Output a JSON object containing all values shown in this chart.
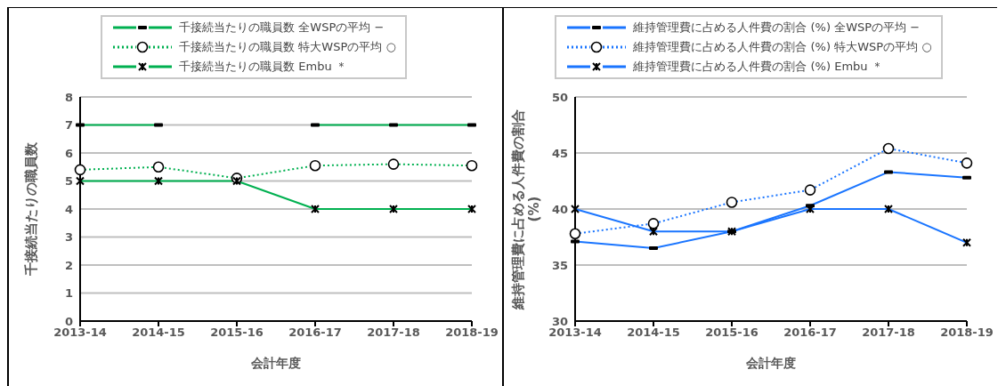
{
  "chart_data": [
    {
      "type": "line",
      "categories": [
        "2013-14",
        "2014-15",
        "2015-16",
        "2016-17",
        "2017-18",
        "2018-19"
      ],
      "xlabel": "会計年度",
      "ylabel": "千接続当たりの職員数",
      "ylim": [
        0,
        8
      ],
      "yticks": [
        0,
        1,
        2,
        3,
        4,
        5,
        6,
        7,
        8
      ],
      "grid": "y",
      "legend": "top",
      "series": [
        {
          "name": "千接続当たりの職員数 全WSPの平均 −",
          "color": "#00b050",
          "marker": "square",
          "line_style": "solid",
          "values": [
            7,
            7,
            null,
            7,
            7,
            7
          ]
        },
        {
          "name": "千接続当たりの職員数 特大WSPの平均 ○",
          "color": "#00b050",
          "marker": "circle",
          "line_style": "dotted",
          "values": [
            5.4,
            5.5,
            5.1,
            5.55,
            5.6,
            5.55
          ]
        },
        {
          "name": "千接続当たりの職員数 Embu ＊",
          "color": "#00b050",
          "marker": "cross",
          "line_style": "solid",
          "values": [
            5,
            5,
            5,
            4,
            4,
            4
          ]
        }
      ]
    },
    {
      "type": "line",
      "categories": [
        "2013-14",
        "2014-15",
        "2015-16",
        "2016-17",
        "2017-18",
        "2018-19"
      ],
      "xlabel": "会計年度",
      "ylabel": "維持管理費に占める人件費の割合\n(%)",
      "ylim": [
        30,
        50
      ],
      "yticks": [
        30,
        35,
        40,
        45,
        50
      ],
      "grid": "y",
      "legend": "top",
      "series": [
        {
          "name": "維持管理費に占める人件費の割合 (%) 全WSPの平均 −",
          "color": "#1a75ff",
          "marker": "square",
          "line_style": "solid",
          "values": [
            37.1,
            36.5,
            38,
            40.3,
            43.3,
            42.8
          ]
        },
        {
          "name": "維持管理費に占める人件費の割合 (%) 特大WSPの平均 ○",
          "color": "#1a75ff",
          "marker": "circle",
          "line_style": "dotted",
          "values": [
            37.8,
            38.7,
            40.6,
            41.7,
            45.4,
            44.1
          ]
        },
        {
          "name": "維持管理費に占める人件費の割合 (%) Embu ＊",
          "color": "#1a75ff",
          "marker": "cross",
          "line_style": "solid",
          "values": [
            40,
            38,
            38,
            40,
            40,
            37
          ]
        }
      ]
    }
  ]
}
